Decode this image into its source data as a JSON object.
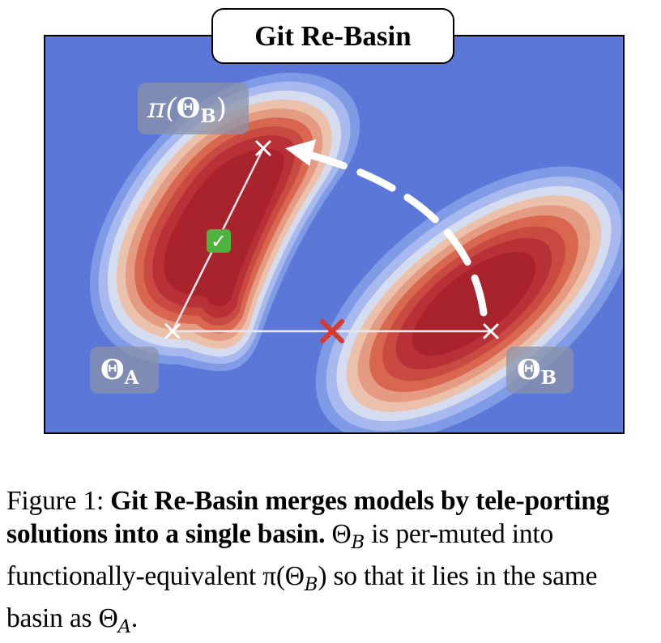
{
  "figure": {
    "title": "Git Re-Basin",
    "labels": {
      "theta_a": "Θ",
      "theta_a_sub": "A",
      "theta_b": "Θ",
      "theta_b_sub": "B",
      "pi_theta_b_pre": "π(",
      "pi_theta_b_theta": "Θ",
      "pi_theta_b_sub": "B",
      "pi_theta_b_post": ")"
    },
    "markers": {
      "good": "✓",
      "bad": "✕"
    },
    "colors": {
      "background": "#5b78d8",
      "basin_core": "#a8232c",
      "basin_mid": "#d9664f",
      "basin_outer": "#ecc1ab",
      "check_green": "#4fb33f",
      "cross_red": "#d63b2f"
    }
  },
  "caption": {
    "prefix": "Figure 1: ",
    "bold": "Git Re-Basin merges models by tele-porting solutions into a single basin.",
    "text1": " Θ",
    "sub1": "B",
    "text2": " is per-muted into functionally-equivalent π(Θ",
    "sub2": "B",
    "text3": ") so that it lies in the same basin as Θ",
    "sub3": "A",
    "text4": "."
  }
}
